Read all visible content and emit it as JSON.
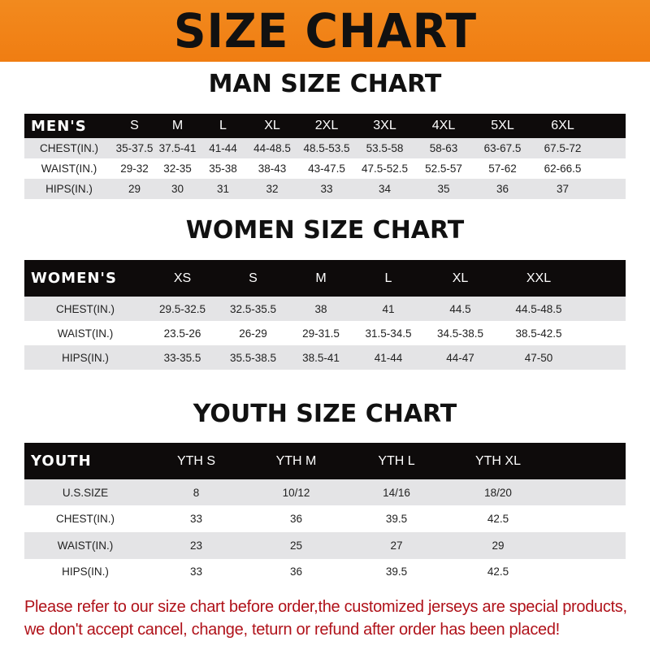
{
  "title": "SIZE CHART",
  "men": {
    "title": "MAN SIZE CHART",
    "label": "MEN'S",
    "sizes": [
      "S",
      "M",
      "L",
      "XL",
      "2XL",
      "3XL",
      "4XL",
      "5XL",
      "6XL"
    ],
    "rows": [
      {
        "label": "CHEST(IN.)",
        "values": [
          "35-37.5",
          "37.5-41",
          "41-44",
          "44-48.5",
          "48.5-53.5",
          "53.5-58",
          "58-63",
          "63-67.5",
          "67.5-72"
        ]
      },
      {
        "label": "WAIST(IN.)",
        "values": [
          "29-32",
          "32-35",
          "35-38",
          "38-43",
          "43-47.5",
          "47.5-52.5",
          "52.5-57",
          "57-62",
          "62-66.5"
        ]
      },
      {
        "label": "HIPS(IN.)",
        "values": [
          "29",
          "30",
          "31",
          "32",
          "33",
          "34",
          "35",
          "36",
          "37"
        ]
      }
    ]
  },
  "women": {
    "title": "WOMEN SIZE CHART",
    "label": "WOMEN'S",
    "sizes": [
      "XS",
      "S",
      "M",
      "L",
      "XL",
      "XXL"
    ],
    "rows": [
      {
        "label": "CHEST(IN.)",
        "values": [
          "29.5-32.5",
          "32.5-35.5",
          "38",
          "41",
          "44.5",
          "44.5-48.5"
        ]
      },
      {
        "label": "WAIST(IN.)",
        "values": [
          "23.5-26",
          "26-29",
          "29-31.5",
          "31.5-34.5",
          "34.5-38.5",
          "38.5-42.5"
        ]
      },
      {
        "label": "HIPS(IN.)",
        "values": [
          "33-35.5",
          "35.5-38.5",
          "38.5-41",
          "41-44",
          "44-47",
          "47-50"
        ]
      }
    ]
  },
  "youth": {
    "title": "YOUTH SIZE CHART",
    "label": "YOUTH",
    "sizes": [
      "YTH S",
      "YTH M",
      "YTH L",
      "YTH XL"
    ],
    "rows": [
      {
        "label": "U.S.SIZE",
        "values": [
          "8",
          "10/12",
          "14/16",
          "18/20"
        ]
      },
      {
        "label": "CHEST(IN.)",
        "values": [
          "33",
          "36",
          "39.5",
          "42.5"
        ]
      },
      {
        "label": "WAIST(IN.)",
        "values": [
          "23",
          "25",
          "27",
          "29"
        ]
      },
      {
        "label": "HIPS(IN.)",
        "values": [
          "33",
          "36",
          "39.5",
          "42.5"
        ]
      }
    ]
  },
  "note": [
    "Please refer to our size chart before order,the customized jerseys are special products,",
    "we don't accept cancel, change, teturn or refund after order has been placed!"
  ]
}
